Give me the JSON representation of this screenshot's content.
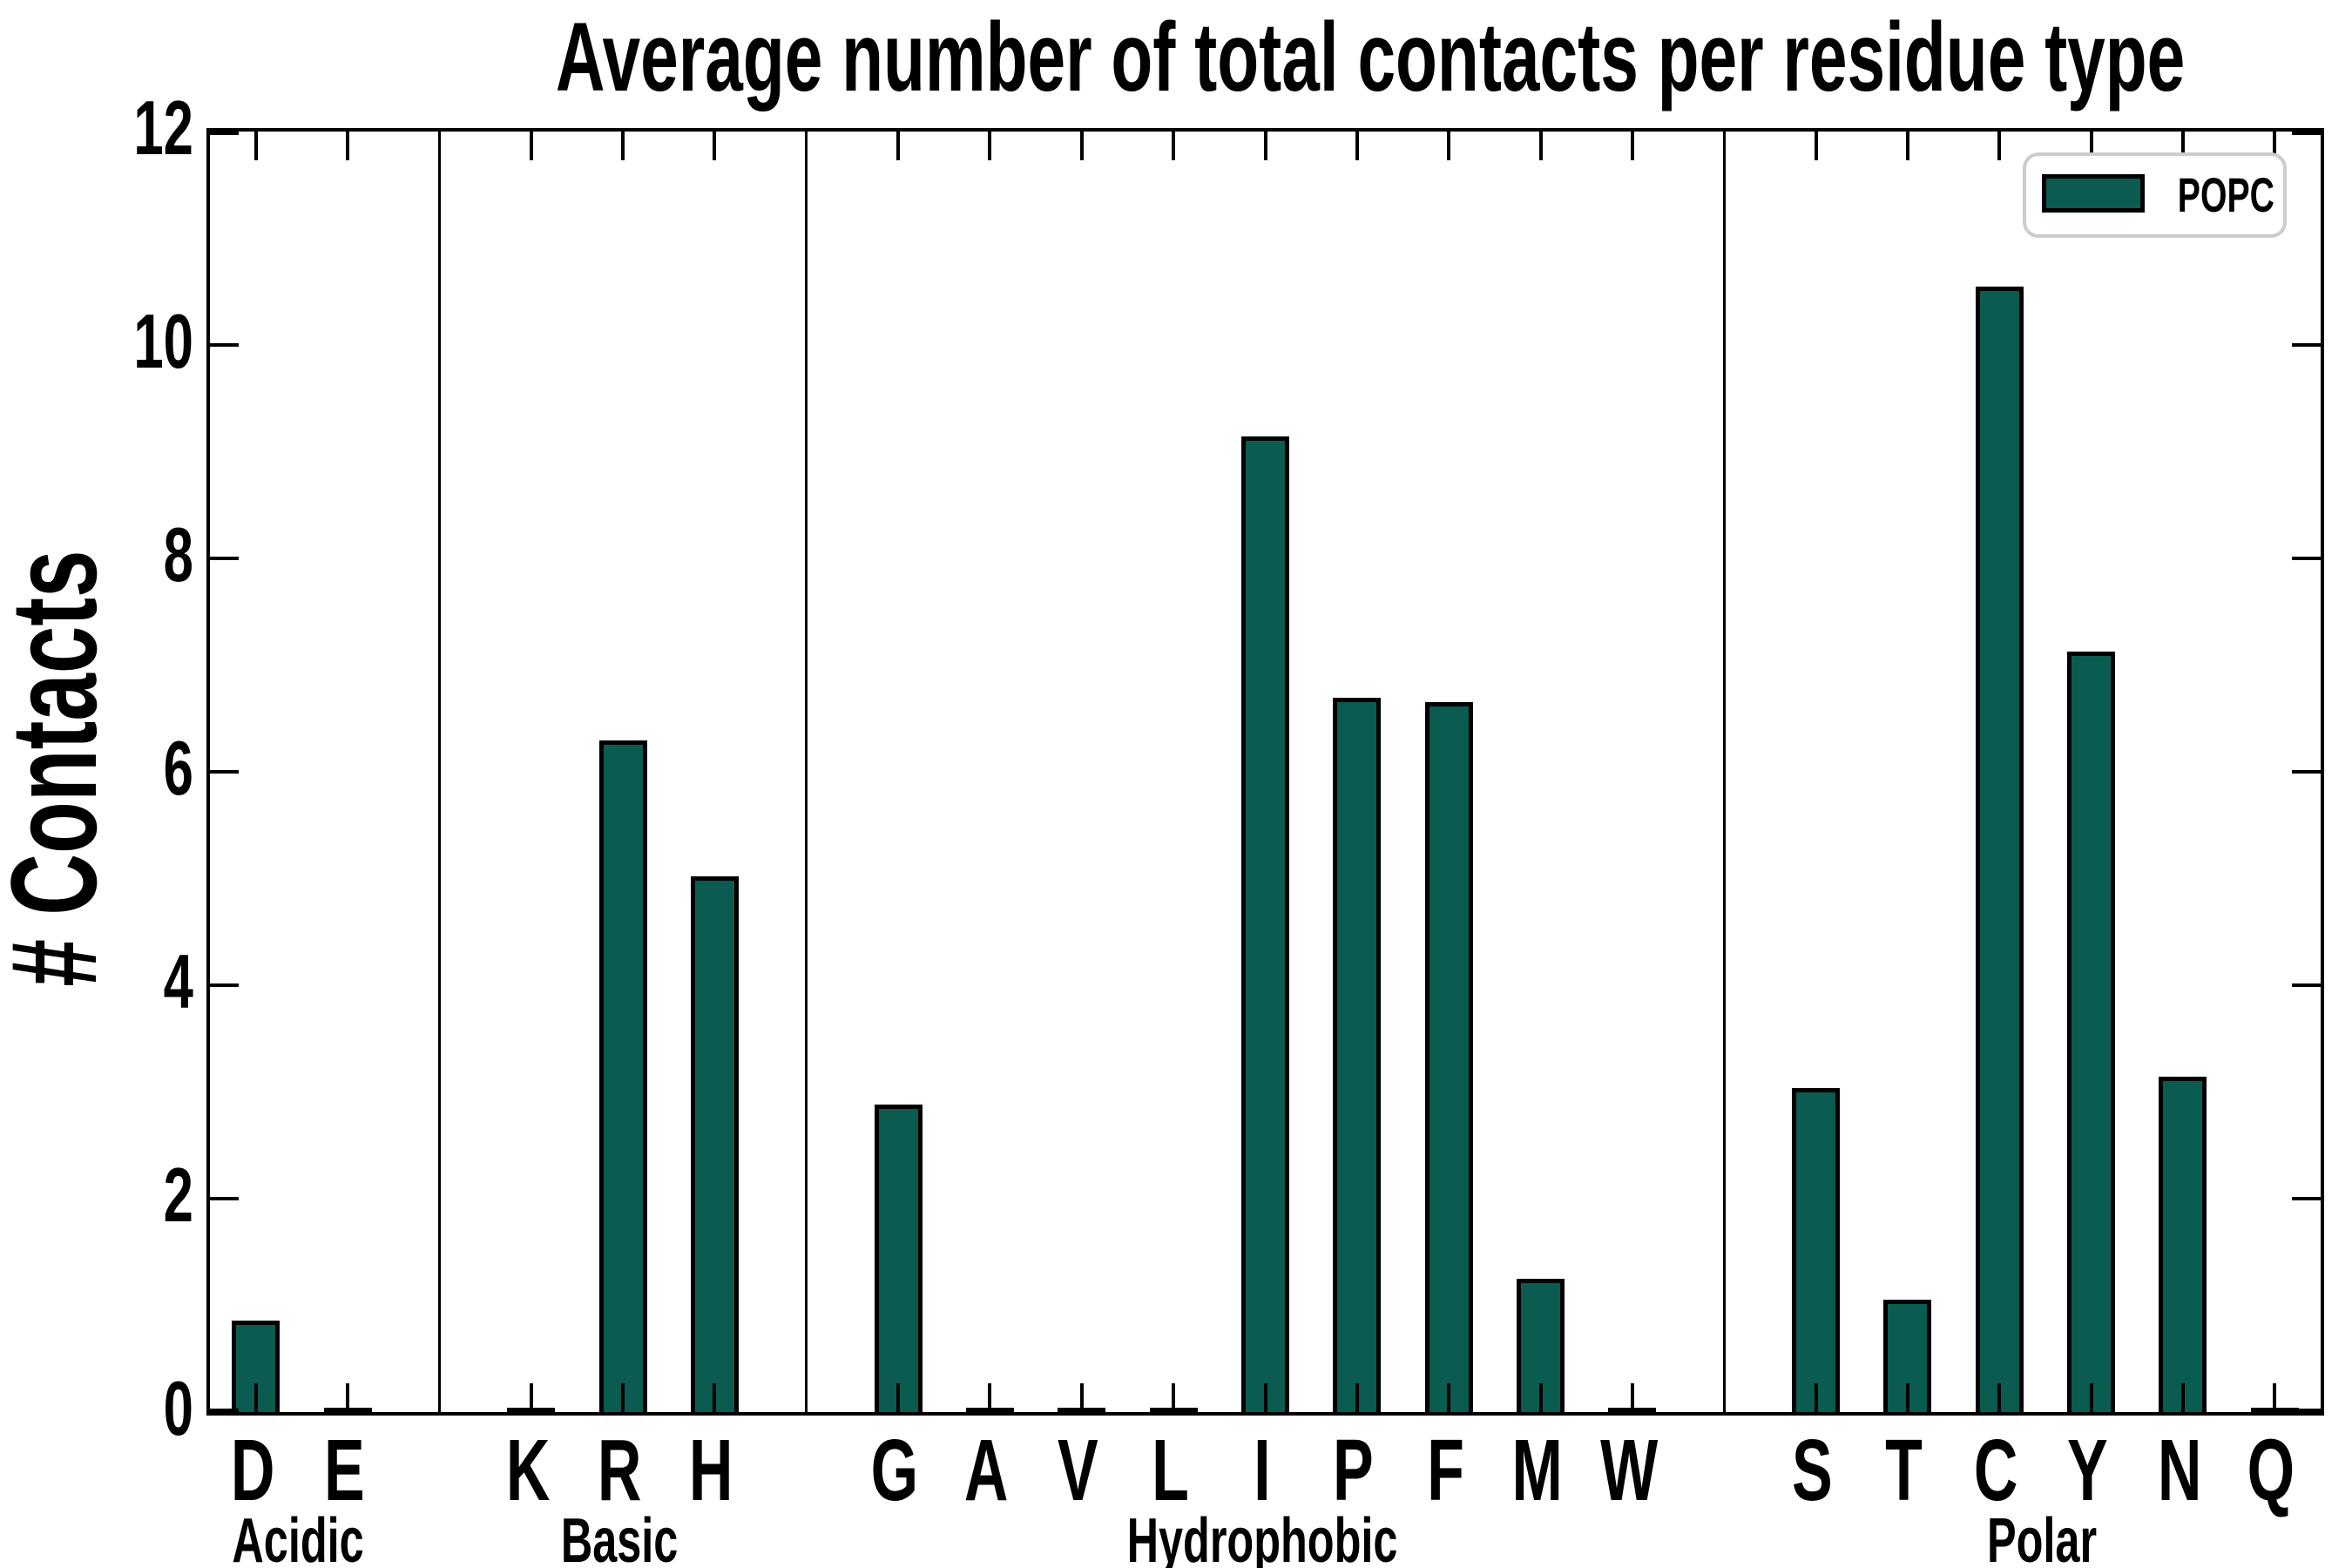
{
  "title": "Average number of total contacts per residue type",
  "ylabel": "# Contacts",
  "legend": {
    "label": "POPC"
  },
  "colors": {
    "bar_fill": "#0a5b50",
    "bar_edge": "#000000",
    "legend_border": "#cccccc",
    "spine": "#000000"
  },
  "chart_data": {
    "type": "bar",
    "title": "Average number of total contacts per residue type",
    "xlabel": "",
    "ylabel": "# Contacts",
    "ylim": [
      0,
      12
    ],
    "yticks": [
      0,
      2,
      4,
      6,
      8,
      10,
      12
    ],
    "grid": false,
    "legend_position": "upper right",
    "series_name": "POPC",
    "groups": [
      {
        "label": "Acidic",
        "categories": [
          "D",
          "E"
        ],
        "values": [
          0.86,
          0.02
        ]
      },
      {
        "label": "Basic",
        "categories": [
          "K",
          "R",
          "H"
        ],
        "values": [
          0.02,
          6.29,
          5.02
        ]
      },
      {
        "label": "Hydrophobic",
        "categories": [
          "G",
          "A",
          "V",
          "L",
          "I",
          "P",
          "F",
          "M",
          "W"
        ],
        "values": [
          2.88,
          0.02,
          0.03,
          0.03,
          9.14,
          6.69,
          6.65,
          1.25,
          0.03
        ]
      },
      {
        "label": "Polar",
        "categories": [
          "S",
          "T",
          "C",
          "Y",
          "N",
          "Q"
        ],
        "values": [
          3.04,
          1.05,
          10.55,
          7.13,
          3.14,
          0.02
        ]
      }
    ]
  }
}
